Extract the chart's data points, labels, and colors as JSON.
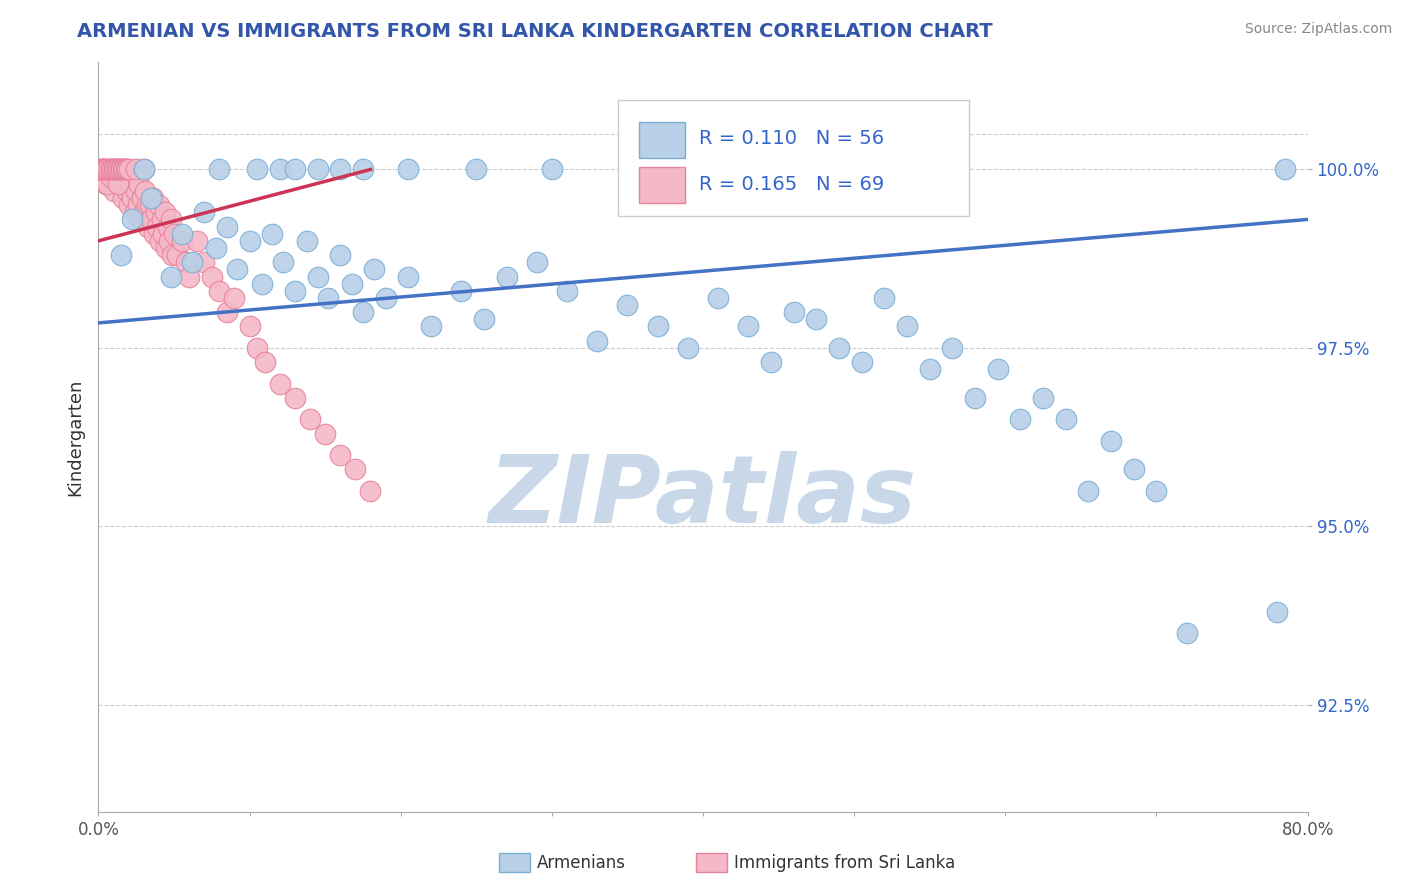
{
  "title": "ARMENIAN VS IMMIGRANTS FROM SRI LANKA KINDERGARTEN CORRELATION CHART",
  "source": "Source: ZipAtlas.com",
  "xlabel_armenians": "Armenians",
  "xlabel_immigrants": "Immigrants from Sri Lanka",
  "ylabel": "Kindergarten",
  "xlim": [
    0.0,
    80.0
  ],
  "ylim": [
    91.0,
    101.5
  ],
  "x_ticks": [
    0.0,
    10.0,
    20.0,
    30.0,
    40.0,
    50.0,
    60.0,
    70.0,
    80.0
  ],
  "x_tick_labels": [
    "0.0%",
    "",
    "",
    "",
    "",
    "",
    "",
    "",
    "80.0%"
  ],
  "y_ticks": [
    92.5,
    95.0,
    97.5,
    100.0
  ],
  "y_tick_labels": [
    "92.5%",
    "95.0%",
    "97.5%",
    "100.0%"
  ],
  "R_blue": 0.11,
  "N_blue": 56,
  "R_pink": 0.165,
  "N_pink": 69,
  "blue_color": "#b8d0e8",
  "blue_edge": "#7aafd4",
  "pink_color": "#f4b8c8",
  "pink_edge": "#e8829a",
  "trendline_blue": "#4472C4",
  "trendline_pink": "#cc3355",
  "watermark": "ZIPatlas",
  "watermark_color": "#c8d8e8",
  "blue_trendline_x": [
    0.0,
    80.0
  ],
  "blue_trendline_y": [
    97.85,
    99.3
  ],
  "pink_trendline_x": [
    0.0,
    18.0
  ],
  "pink_trendline_y": [
    99.0,
    100.0
  ],
  "blue_scatter_x": [
    1.5,
    2.2,
    3.5,
    4.8,
    5.5,
    6.2,
    7.0,
    7.8,
    8.5,
    9.2,
    10.0,
    10.8,
    11.5,
    12.2,
    13.0,
    13.8,
    14.5,
    15.2,
    16.0,
    16.8,
    17.5,
    18.2,
    19.0,
    20.5,
    22.0,
    24.0,
    25.5,
    27.0,
    29.0,
    31.0,
    33.0,
    35.0,
    37.0,
    39.0,
    41.0,
    43.0,
    44.5,
    46.0,
    47.5,
    49.0,
    50.5,
    52.0,
    53.5,
    55.0,
    56.5,
    58.0,
    59.5,
    61.0,
    62.5,
    64.0,
    65.5,
    67.0,
    68.5,
    70.0,
    72.0,
    78.0
  ],
  "blue_scatter_y": [
    98.8,
    99.3,
    99.6,
    98.5,
    99.1,
    98.7,
    99.4,
    98.9,
    99.2,
    98.6,
    99.0,
    98.4,
    99.1,
    98.7,
    98.3,
    99.0,
    98.5,
    98.2,
    98.8,
    98.4,
    98.0,
    98.6,
    98.2,
    98.5,
    97.8,
    98.3,
    97.9,
    98.5,
    98.7,
    98.3,
    97.6,
    98.1,
    97.8,
    97.5,
    98.2,
    97.8,
    97.3,
    98.0,
    97.9,
    97.5,
    97.3,
    98.2,
    97.8,
    97.2,
    97.5,
    96.8,
    97.2,
    96.5,
    96.8,
    96.5,
    95.5,
    96.2,
    95.8,
    95.5,
    93.5,
    93.8
  ],
  "blue_scatter_top_x": [
    3.0,
    8.0,
    10.5,
    12.0,
    13.0,
    14.5,
    16.0,
    17.5,
    20.5,
    25.0,
    30.0,
    35.5,
    44.0,
    78.5
  ],
  "blue_scatter_top_y": [
    100.0,
    100.0,
    100.0,
    100.0,
    100.0,
    100.0,
    100.0,
    100.0,
    100.0,
    100.0,
    100.0,
    100.0,
    100.0,
    100.0
  ],
  "pink_scatter_x": [
    0.3,
    0.5,
    0.7,
    0.9,
    1.0,
    1.2,
    1.4,
    1.5,
    1.6,
    1.7,
    1.8,
    1.9,
    2.0,
    2.1,
    2.2,
    2.3,
    2.4,
    2.5,
    2.6,
    2.7,
    2.8,
    2.9,
    3.0,
    3.1,
    3.2,
    3.3,
    3.4,
    3.5,
    3.6,
    3.7,
    3.8,
    3.9,
    4.0,
    4.1,
    4.2,
    4.3,
    4.4,
    4.5,
    4.6,
    4.7,
    4.8,
    4.9,
    5.0,
    5.2,
    5.5,
    5.8,
    6.0,
    6.5,
    7.0,
    7.5,
    8.0,
    8.5,
    9.0,
    10.0,
    10.5,
    11.0,
    12.0,
    13.0,
    14.0,
    15.0,
    16.0,
    17.0,
    18.0,
    0.2,
    0.4,
    0.6,
    0.8,
    1.1,
    1.3
  ],
  "pink_scatter_y": [
    100.0,
    99.8,
    99.9,
    100.0,
    99.7,
    99.9,
    100.0,
    99.8,
    99.6,
    99.9,
    100.0,
    99.7,
    99.5,
    99.8,
    99.6,
    99.9,
    99.4,
    99.7,
    99.5,
    99.8,
    99.3,
    99.6,
    99.4,
    99.7,
    99.5,
    99.2,
    99.5,
    99.3,
    99.6,
    99.1,
    99.4,
    99.2,
    99.5,
    99.0,
    99.3,
    99.1,
    99.4,
    98.9,
    99.2,
    99.0,
    99.3,
    98.8,
    99.1,
    98.8,
    99.0,
    98.7,
    98.5,
    99.0,
    98.7,
    98.5,
    98.3,
    98.0,
    98.2,
    97.8,
    97.5,
    97.3,
    97.0,
    96.8,
    96.5,
    96.3,
    96.0,
    95.8,
    95.5,
    99.9,
    100.0,
    99.8,
    99.9,
    100.0,
    99.8
  ],
  "pink_scatter_top_x": [
    0.1,
    0.2,
    0.3,
    0.4,
    0.5,
    0.6,
    0.7,
    0.8,
    0.9,
    1.0,
    1.1,
    1.2,
    1.3,
    1.4,
    1.5,
    1.6,
    1.7,
    1.8,
    1.9,
    2.0,
    2.5,
    3.0
  ],
  "pink_scatter_top_y": [
    100.0,
    100.0,
    100.0,
    100.0,
    100.0,
    100.0,
    100.0,
    100.0,
    100.0,
    100.0,
    100.0,
    100.0,
    100.0,
    100.0,
    100.0,
    100.0,
    100.0,
    100.0,
    100.0,
    100.0,
    100.0,
    100.0
  ]
}
